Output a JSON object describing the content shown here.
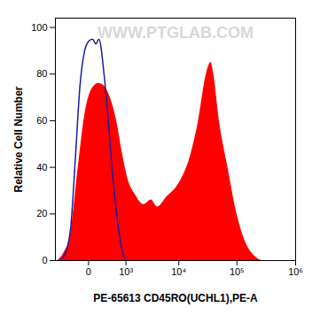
{
  "chart_data": {
    "type": "line",
    "x_label": "PE-65613 CD45RO(UCHL1),PE-A",
    "y_label": "Relative Cell Number",
    "annotations": [
      "WWW.PTGLAB.COM"
    ],
    "xlim": [
      -800,
      1000000
    ],
    "xticks": [
      0,
      {
        "value": 1000,
        "label": "10³"
      },
      {
        "value": 10000,
        "label": "10⁴"
      },
      {
        "value": 100000,
        "label": "10⁵"
      },
      {
        "value": 1000000,
        "label": "10⁶"
      }
    ],
    "ylim": [
      0,
      104
    ],
    "yticks": [
      0,
      20,
      40,
      60,
      80,
      100
    ],
    "series": [
      {
        "type": "area",
        "color": "#ff0000",
        "x": [
          -700,
          -500,
          -300,
          -150,
          -50,
          50,
          150,
          250,
          400,
          600,
          850,
          1100,
          1600,
          2300,
          3200,
          4200,
          6000,
          10000,
          16000,
          22000,
          30000,
          36000,
          40000,
          50000,
          70000,
          100000,
          140000,
          200000,
          260000
        ],
        "values": [
          0,
          3,
          12,
          40,
          62,
          74,
          76,
          75,
          70,
          60,
          45,
          35,
          28,
          24,
          26,
          23,
          27,
          33,
          45,
          60,
          80,
          85,
          80,
          60,
          40,
          20,
          8,
          2,
          0
        ]
      },
      {
        "type": "line",
        "color": "#1c1c9c",
        "x": [
          -600,
          -400,
          -300,
          -200,
          -120,
          -50,
          0,
          50,
          100,
          150,
          250,
          350,
          450,
          600,
          800,
          1000
        ],
        "values": [
          0,
          5,
          15,
          45,
          75,
          90,
          94,
          95,
          93,
          95,
          80,
          60,
          40,
          20,
          5,
          0
        ]
      }
    ]
  }
}
